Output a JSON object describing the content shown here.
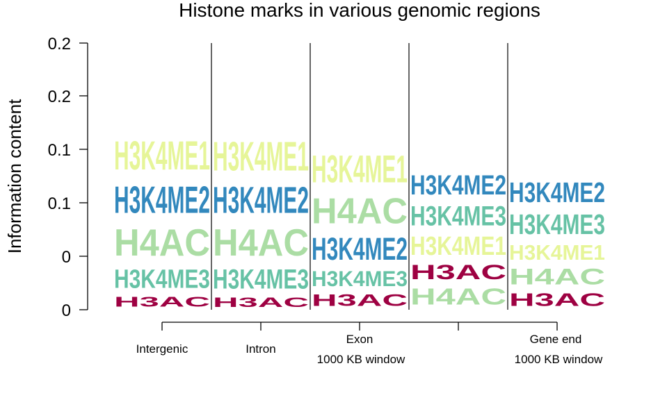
{
  "chart_data": {
    "type": "sequence-logo",
    "title": "Histone marks in various genomic regions",
    "ylabel": "Information content",
    "y_tick_labels": [
      "0",
      "0",
      "0.1",
      "0.1",
      "0.2",
      "0.2"
    ],
    "ylim": [
      0,
      0.25
    ],
    "colors": {
      "H3K4ME1": "#e6f598",
      "H3K4ME2": "#3288bd",
      "H4AC": "#abdda4",
      "H3K4ME3": "#66c2a5",
      "H3AC": "#9e0142"
    },
    "positions": [
      {
        "label": "Intergenic",
        "stack": [
          {
            "mark": "H3AC",
            "value": 0.015
          },
          {
            "mark": "H3K4ME3",
            "value": 0.028
          },
          {
            "mark": "H4AC",
            "value": 0.04
          },
          {
            "mark": "H3K4ME2",
            "value": 0.04
          },
          {
            "mark": "H3K4ME1",
            "value": 0.0425
          }
        ]
      },
      {
        "label": "Intron",
        "stack": [
          {
            "mark": "H3AC",
            "value": 0.014
          },
          {
            "mark": "H3K4ME3",
            "value": 0.029
          },
          {
            "mark": "H4AC",
            "value": 0.04
          },
          {
            "mark": "H3K4ME2",
            "value": 0.039
          },
          {
            "mark": "H3K4ME1",
            "value": 0.043
          }
        ]
      },
      {
        "label": "Exon",
        "label2": "1000 KB window",
        "stack": [
          {
            "mark": "H3AC",
            "value": 0.0175
          },
          {
            "mark": "H3K4ME3",
            "value": 0.023
          },
          {
            "mark": "H3K4ME2",
            "value": 0.033
          },
          {
            "mark": "H4AC",
            "value": 0.038
          },
          {
            "mark": "H3K4ME1",
            "value": 0.0405
          }
        ]
      },
      {
        "label": "",
        "stack": [
          {
            "mark": "H4AC",
            "value": 0.0245
          },
          {
            "mark": "H3AC",
            "value": 0.0215
          },
          {
            "mark": "H3K4ME1",
            "value": 0.0275
          },
          {
            "mark": "H3K4ME3",
            "value": 0.029
          },
          {
            "mark": "H3K4ME2",
            "value": 0.029
          }
        ]
      },
      {
        "label": "Gene end",
        "label2": "1000 KB window",
        "stack": [
          {
            "mark": "H3AC",
            "value": 0.019
          },
          {
            "mark": "H4AC",
            "value": 0.0235
          },
          {
            "mark": "H3K4ME1",
            "value": 0.0225
          },
          {
            "mark": "H3K4ME3",
            "value": 0.03
          },
          {
            "mark": "H3K4ME2",
            "value": 0.03
          }
        ]
      }
    ]
  }
}
